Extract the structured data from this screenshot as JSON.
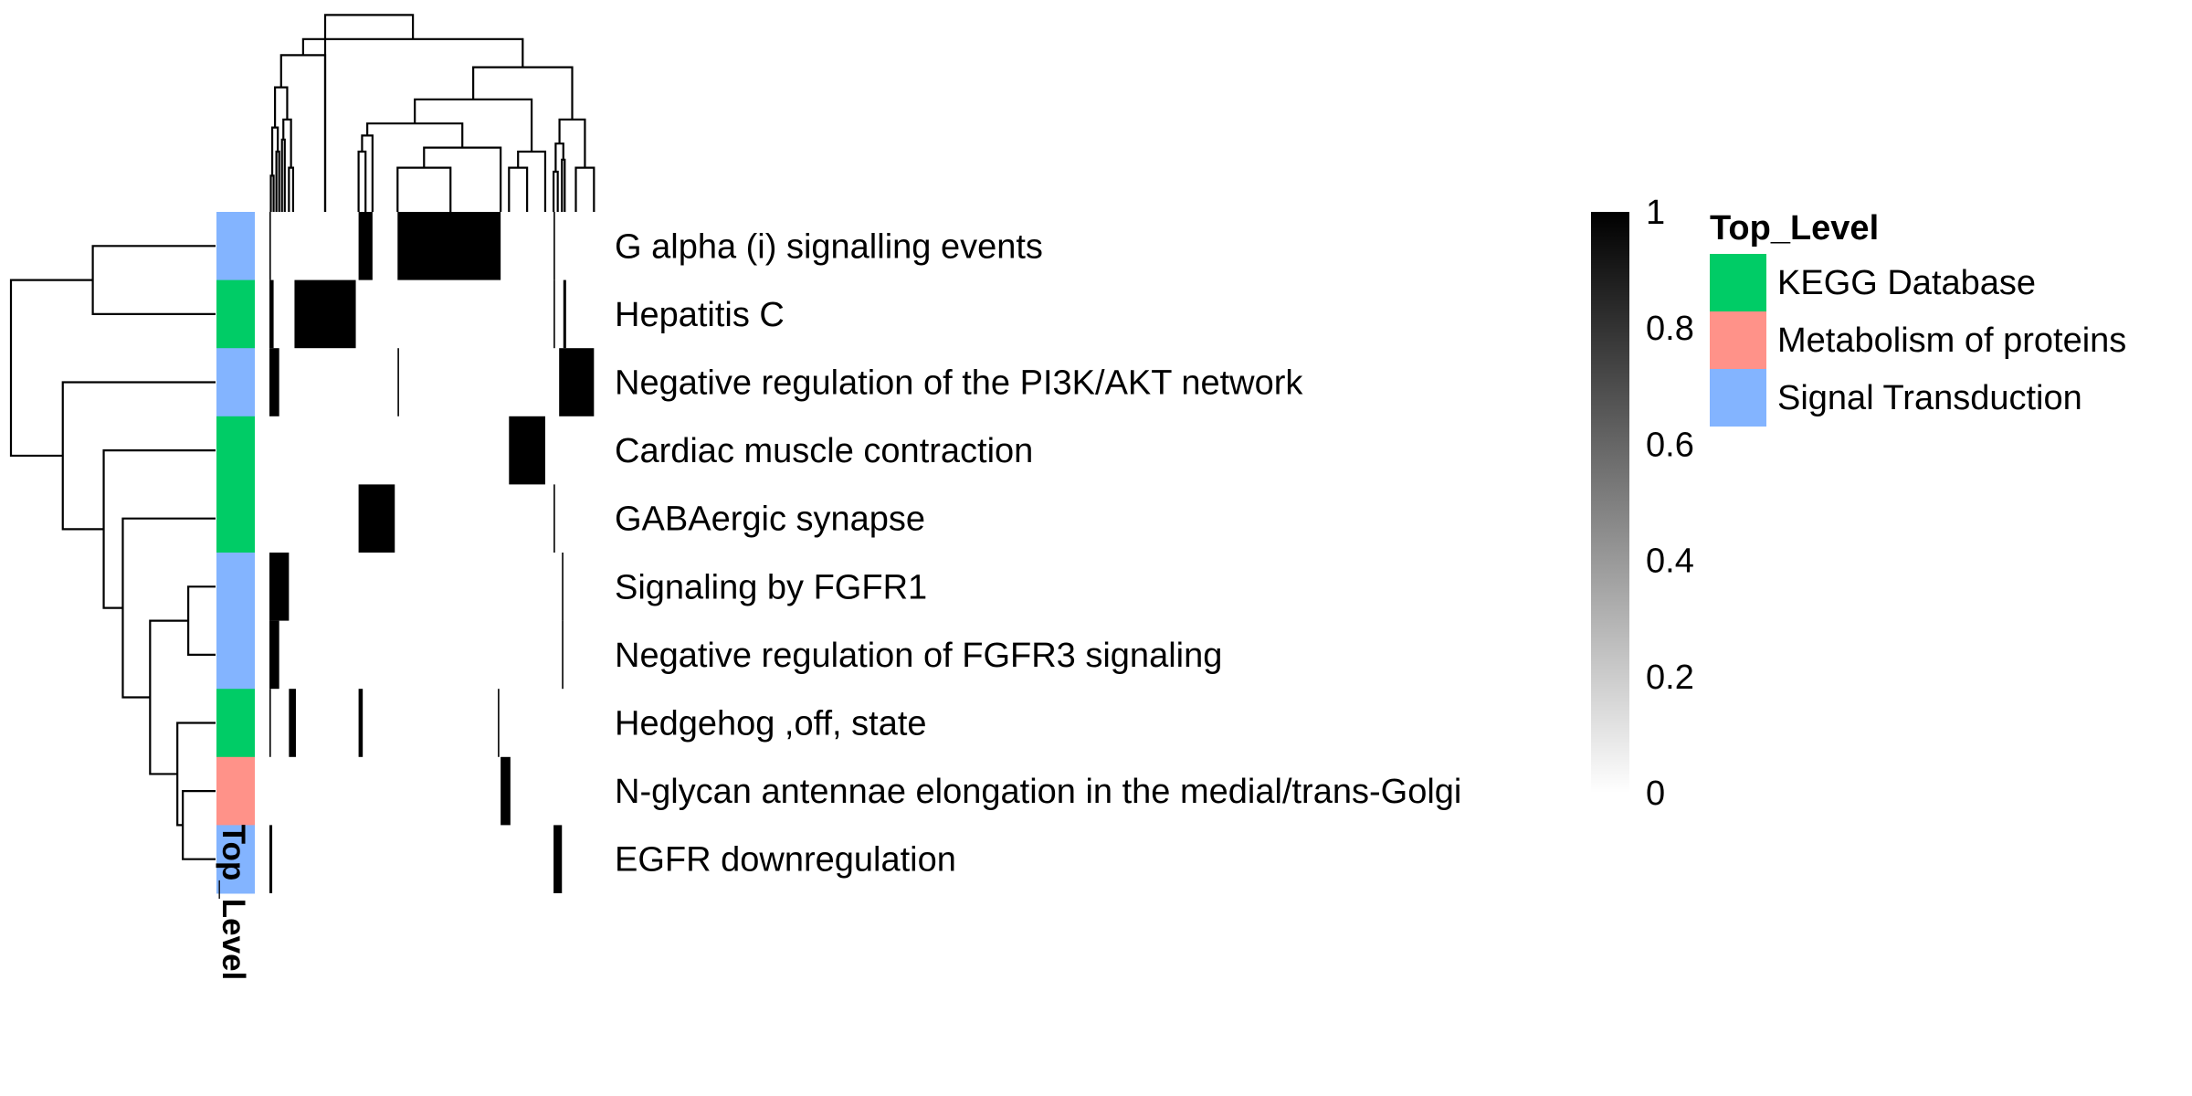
{
  "chart_data": {
    "type": "heatmap",
    "title": "",
    "rows": [
      "G alpha (i) signalling events",
      "Hepatitis C",
      "Negative regulation of the PI3K/AKT network",
      "Cardiac muscle contraction",
      "GABAergic synapse",
      "Signaling by FGFR1",
      "Negative regulation of FGFR3 signaling",
      "Hedgehog ,off, state",
      "N-glycan antennae elongation in the medial/trans-Golgi",
      "EGFR downregulation"
    ],
    "row_annotation": {
      "name": "Top_Level",
      "values": [
        "Signal Transduction",
        "KEGG Database",
        "Signal Transduction",
        "KEGG Database",
        "KEGG Database",
        "Signal Transduction",
        "Signal Transduction",
        "KEGG Database",
        "Metabolism of proteins",
        "Signal Transduction"
      ]
    },
    "annotation_legend": {
      "title": "Top_Level",
      "items": [
        {
          "label": "KEGG Database",
          "color": "#00CC66"
        },
        {
          "label": "Metabolism of proteins",
          "color": "#FF9289"
        },
        {
          "label": "Signal Transduction",
          "color": "#83B4FF"
        }
      ]
    },
    "color_scale": {
      "min": 0,
      "max": 1,
      "low_color": "#ffffff",
      "high_color": "#000000",
      "ticks": [
        "1",
        "0.8",
        "0.6",
        "0.4",
        "0.2",
        "0"
      ]
    },
    "column_units": 240,
    "cells": [
      {
        "row": 0,
        "col_start": 0,
        "col_end": 1,
        "value": 1
      },
      {
        "row": 0,
        "col_start": 64,
        "col_end": 74,
        "value": 1
      },
      {
        "row": 0,
        "col_start": 92,
        "col_end": 166,
        "value": 1
      },
      {
        "row": 0,
        "col_start": 204,
        "col_end": 205,
        "value": 1
      },
      {
        "row": 1,
        "col_start": 0,
        "col_end": 3,
        "value": 1
      },
      {
        "row": 1,
        "col_start": 18,
        "col_end": 62,
        "value": 1
      },
      {
        "row": 1,
        "col_start": 204,
        "col_end": 205,
        "value": 1
      },
      {
        "row": 1,
        "col_start": 211,
        "col_end": 213,
        "value": 1
      },
      {
        "row": 2,
        "col_start": 0,
        "col_end": 7,
        "value": 1
      },
      {
        "row": 2,
        "col_start": 92,
        "col_end": 93,
        "value": 1
      },
      {
        "row": 2,
        "col_start": 208,
        "col_end": 233,
        "value": 1
      },
      {
        "row": 3,
        "col_start": 172,
        "col_end": 198,
        "value": 1
      },
      {
        "row": 4,
        "col_start": 64,
        "col_end": 90,
        "value": 1
      },
      {
        "row": 4,
        "col_start": 204,
        "col_end": 205,
        "value": 1
      },
      {
        "row": 5,
        "col_start": 0,
        "col_end": 14,
        "value": 1
      },
      {
        "row": 5,
        "col_start": 210,
        "col_end": 211,
        "value": 1
      },
      {
        "row": 6,
        "col_start": 0,
        "col_end": 7,
        "value": 1
      },
      {
        "row": 6,
        "col_start": 210,
        "col_end": 211,
        "value": 1
      },
      {
        "row": 7,
        "col_start": 0,
        "col_end": 1,
        "value": 1
      },
      {
        "row": 7,
        "col_start": 14,
        "col_end": 19,
        "value": 1
      },
      {
        "row": 7,
        "col_start": 64,
        "col_end": 67,
        "value": 1
      },
      {
        "row": 7,
        "col_start": 164,
        "col_end": 165,
        "value": 1
      },
      {
        "row": 8,
        "col_start": 166,
        "col_end": 173,
        "value": 1
      },
      {
        "row": 9,
        "col_start": 0,
        "col_end": 2,
        "value": 1
      },
      {
        "row": 9,
        "col_start": 204,
        "col_end": 210,
        "value": 1
      }
    ],
    "row_dendrogram": [
      {
        "left": 0,
        "right": 1,
        "height": 0.45
      },
      {
        "left": 5,
        "right": 6,
        "height": 0.1
      },
      {
        "left": 8,
        "right": 9,
        "height": 0.12
      },
      {
        "left": 7,
        "right": "m3",
        "height": 0.14
      },
      {
        "left": "m2",
        "right": "m4",
        "height": 0.24
      },
      {
        "left": 4,
        "right": "m5",
        "height": 0.34
      },
      {
        "left": 3,
        "right": "m6",
        "height": 0.41
      },
      {
        "left": 2,
        "right": "m7",
        "height": 0.56
      },
      {
        "left": "m1",
        "right": "m8",
        "height": 0.75
      }
    ],
    "column_dendrogram_top_split": {
      "left_cols": [
        0,
        18
      ],
      "right_cols": [
        18,
        240
      ]
    }
  }
}
